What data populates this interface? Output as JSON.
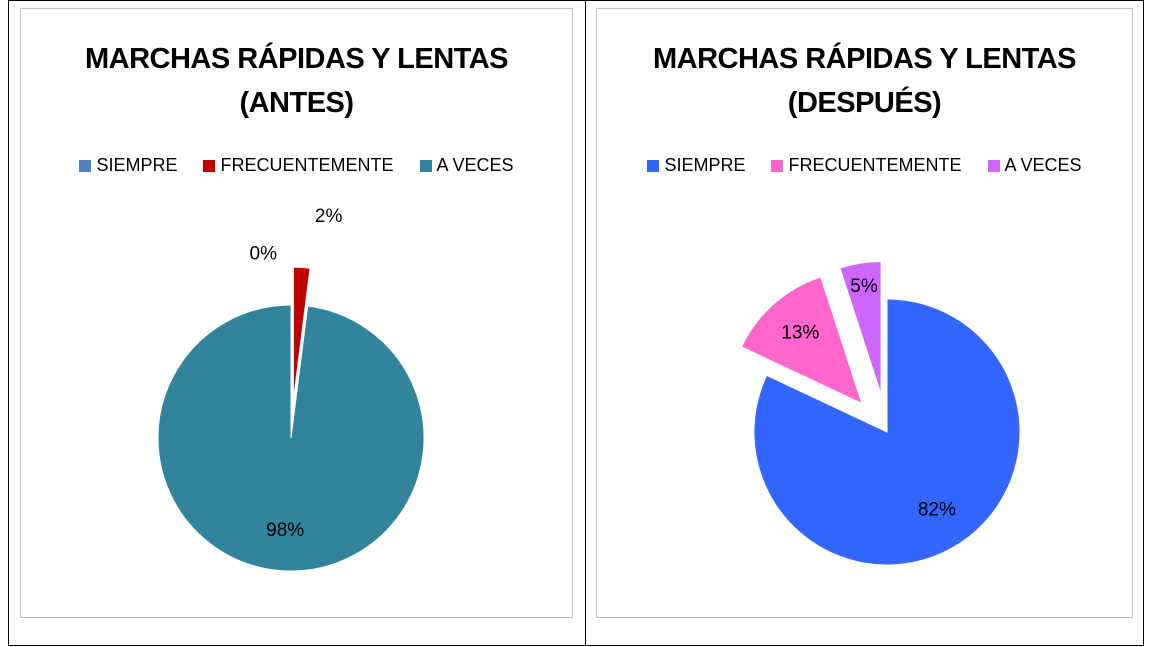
{
  "chart_data": [
    {
      "type": "pie",
      "title": "MARCHAS RÁPIDAS Y LENTAS (ANTES)",
      "categories": [
        "SIEMPRE",
        "FRECUENTEMENTE",
        "A VECES"
      ],
      "values": [
        0,
        2,
        98
      ],
      "value_labels": [
        "0%",
        "2%",
        "98%"
      ],
      "colors": [
        "#4f81bd",
        "#c00000",
        "#31849b"
      ],
      "explode": [
        false,
        true,
        false
      ],
      "legend": "top"
    },
    {
      "type": "pie",
      "title": "MARCHAS RÁPIDAS Y LENTAS (DESPUÉS)",
      "categories": [
        "SIEMPRE",
        "FRECUENTEMENTE",
        "A VECES"
      ],
      "values": [
        82,
        13,
        5
      ],
      "value_labels": [
        "82%",
        "13%",
        "5%"
      ],
      "colors": [
        "#3366ff",
        "#ff66cc",
        "#cc66ff"
      ],
      "explode": [
        false,
        true,
        true
      ],
      "legend": "top"
    }
  ]
}
